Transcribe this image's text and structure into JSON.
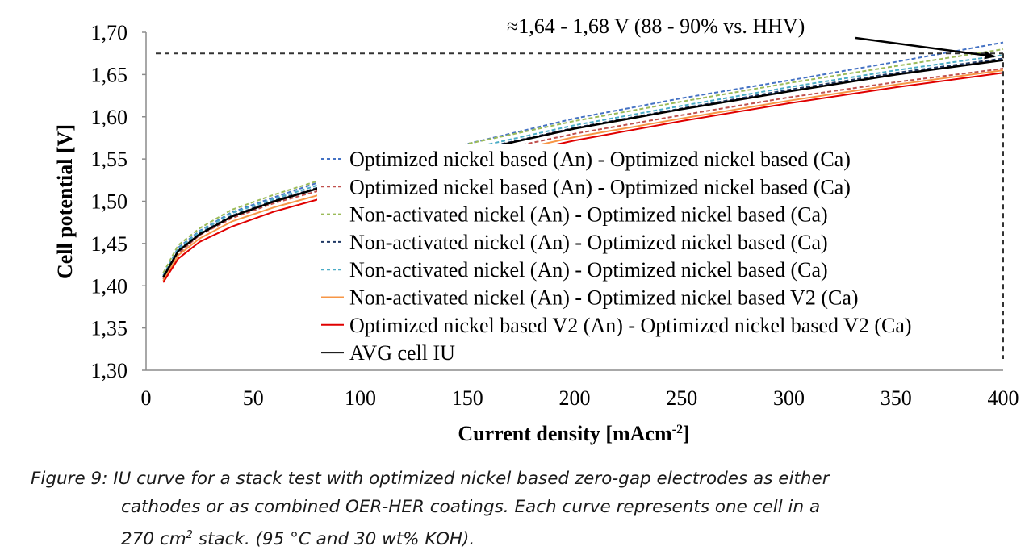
{
  "chart_data": {
    "type": "line",
    "xlabel": "Current density [mAcm⁻²]",
    "ylabel": "Cell potential [V]",
    "xlim": [
      0,
      400
    ],
    "ylim": [
      1.3,
      1.7
    ],
    "xticks": [
      "0",
      "50",
      "100",
      "150",
      "200",
      "250",
      "300",
      "350",
      "400"
    ],
    "yticks": [
      "1,30",
      "1,35",
      "1,40",
      "1,45",
      "1,50",
      "1,55",
      "1,60",
      "1,65",
      "1,70"
    ],
    "grid": false,
    "legend_position": "center",
    "annotation": {
      "text": "≈1,64 - 1,68 V (88 - 90%  vs. HHV)",
      "reference_level_V": 1.675,
      "reference_current": 400
    },
    "series": [
      {
        "name": "Optimized nickel based (An) - Optimized nickel based (Ca)",
        "color": "#4472c4",
        "dash": "dashed",
        "x": [
          8,
          15,
          25,
          40,
          60,
          80,
          100,
          150,
          200,
          250,
          300,
          350,
          400
        ],
        "y": [
          1.412,
          1.445,
          1.465,
          1.487,
          1.505,
          1.522,
          1.538,
          1.568,
          1.598,
          1.622,
          1.643,
          1.665,
          1.688
        ]
      },
      {
        "name": "Optimized nickel based (An) - Optimized nickel based (Ca)",
        "color": "#c0504d",
        "dash": "dashed",
        "x": [
          8,
          15,
          25,
          40,
          60,
          80,
          100,
          150,
          200,
          250,
          300,
          350,
          400
        ],
        "y": [
          1.408,
          1.438,
          1.46,
          1.48,
          1.498,
          1.512,
          1.525,
          1.553,
          1.58,
          1.602,
          1.623,
          1.641,
          1.657
        ]
      },
      {
        "name": "Non-activated nickel (An) - Optimized nickel based (Ca)",
        "color": "#9bbb59",
        "dash": "dashed",
        "x": [
          8,
          15,
          25,
          40,
          60,
          80,
          100,
          150,
          200,
          250,
          300,
          350,
          400
        ],
        "y": [
          1.415,
          1.448,
          1.468,
          1.49,
          1.508,
          1.524,
          1.538,
          1.568,
          1.595,
          1.618,
          1.64,
          1.66,
          1.68
        ]
      },
      {
        "name": "Non-activated nickel (An) - Optimized nickel based (Ca)",
        "color": "#1f3864",
        "dash": "dashed",
        "x": [
          8,
          15,
          25,
          40,
          60,
          80,
          100,
          150,
          200,
          250,
          300,
          350,
          400
        ],
        "y": [
          1.41,
          1.442,
          1.462,
          1.483,
          1.501,
          1.516,
          1.53,
          1.559,
          1.587,
          1.61,
          1.632,
          1.652,
          1.669
        ]
      },
      {
        "name": "Non-activated nickel (An) - Optimized nickel based (Ca)",
        "color": "#4bacc6",
        "dash": "dashed",
        "x": [
          8,
          15,
          25,
          40,
          60,
          80,
          100,
          150,
          200,
          250,
          300,
          350,
          400
        ],
        "y": [
          1.412,
          1.444,
          1.464,
          1.486,
          1.503,
          1.519,
          1.533,
          1.562,
          1.59,
          1.613,
          1.635,
          1.655,
          1.673
        ]
      },
      {
        "name": "Non-activated nickel (An) - Optimized nickel based V2 (Ca)",
        "color": "#f79646",
        "dash": "solid",
        "x": [
          8,
          15,
          25,
          40,
          60,
          80,
          100,
          150,
          200,
          250,
          300,
          350,
          400
        ],
        "y": [
          1.406,
          1.436,
          1.456,
          1.476,
          1.493,
          1.507,
          1.52,
          1.548,
          1.576,
          1.598,
          1.619,
          1.638,
          1.655
        ]
      },
      {
        "name": "Optimized nickel based V2 (An) - Optimized nickel based V2 (Ca)",
        "color": "#e00000",
        "dash": "solid",
        "x": [
          8,
          15,
          25,
          40,
          60,
          80,
          100,
          150,
          200,
          250,
          300,
          350,
          400
        ],
        "y": [
          1.404,
          1.432,
          1.452,
          1.47,
          1.488,
          1.502,
          1.515,
          1.544,
          1.572,
          1.595,
          1.616,
          1.635,
          1.652
        ]
      },
      {
        "name": "AVG cell IU",
        "color": "#000000",
        "dash": "solid",
        "x": [
          8,
          15,
          25,
          40,
          60,
          80,
          100,
          150,
          200,
          250,
          300,
          350,
          400
        ],
        "y": [
          1.41,
          1.441,
          1.461,
          1.482,
          1.5,
          1.515,
          1.529,
          1.558,
          1.586,
          1.609,
          1.63,
          1.65,
          1.667
        ]
      }
    ]
  },
  "caption": {
    "line1": "Figure 9: IU curve for a stack test with optimized nickel based zero-gap electrodes as either",
    "line2": "cathodes or as combined OER-HER coatings. Each curve represents one cell in a",
    "line3_pre": "270 cm",
    "line3_sup": "2",
    "line3_post": " stack. (95 °C and 30 wt% KOH)."
  }
}
